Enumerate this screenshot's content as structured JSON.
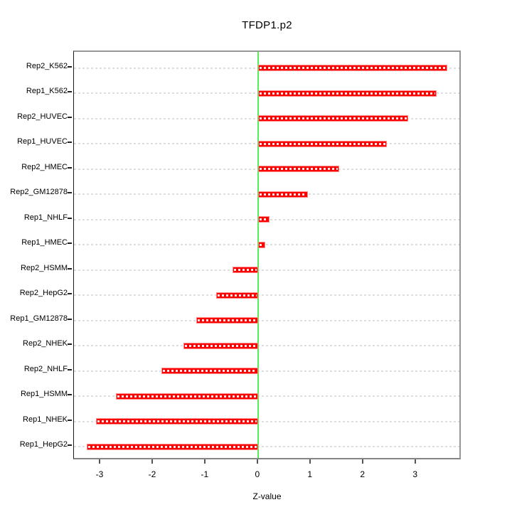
{
  "chart_data": {
    "type": "bar",
    "orientation": "horizontal",
    "title": "TFDP1.p2",
    "xlabel": "Z-value",
    "ylabel": "",
    "categories": [
      "Rep2_K562",
      "Rep1_K562",
      "Rep2_HUVEC",
      "Rep1_HUVEC",
      "Rep2_HMEC",
      "Rep2_GM12878",
      "Rep1_NHLF",
      "Rep1_HMEC",
      "Rep2_HSMM",
      "Rep2_HepG2",
      "Rep1_GM12878",
      "Rep2_NHEK",
      "Rep2_NHLF",
      "Rep1_HSMM",
      "Rep1_NHEK",
      "Rep1_HepG2"
    ],
    "values": [
      3.6,
      3.4,
      2.85,
      2.45,
      1.55,
      0.95,
      0.22,
      0.14,
      -0.48,
      -0.8,
      -1.17,
      -1.42,
      -1.84,
      -2.7,
      -3.08,
      -3.25
    ],
    "xlim": [
      -3.5,
      3.87
    ],
    "xticks": [
      -3,
      -2,
      -1,
      0,
      1,
      2,
      3
    ],
    "grid": true,
    "legend_position": "none",
    "colors": {
      "bar_fill": "#ff0000",
      "bar_edge": "#ff8a8a",
      "zero_line": "#55ee55",
      "grid_line": "#dedede",
      "box_border": "#979797",
      "text": "#000000"
    }
  }
}
